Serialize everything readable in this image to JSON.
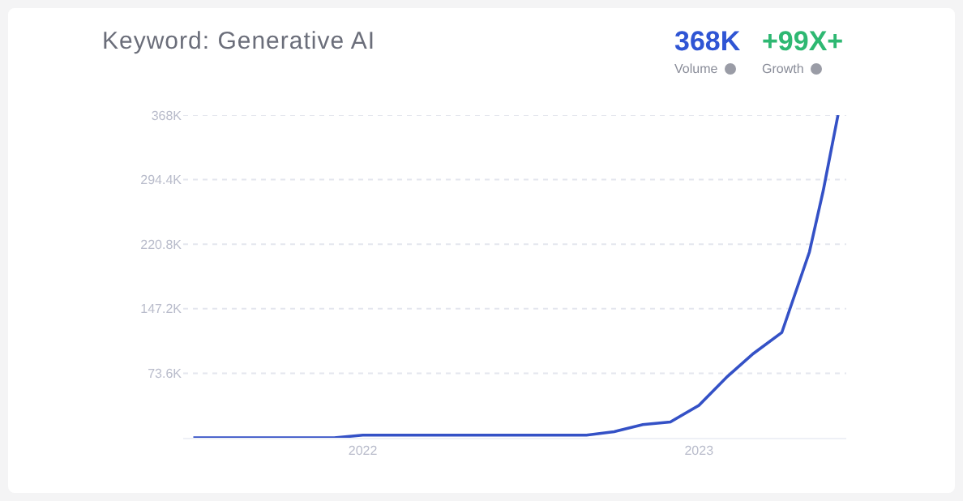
{
  "chart_data": {
    "type": "line",
    "title": "Keyword: Generative AI",
    "annotations": [
      "368K",
      "Volume",
      "+99X+",
      "Growth"
    ],
    "x": [
      "2021-07-01",
      "2021-12-01",
      "2022-01-01",
      "2022-09-01",
      "2022-10-01",
      "2022-11-01",
      "2022-12-01",
      "2023-01-01",
      "2023-02-01",
      "2023-03-01",
      "2023-04-01",
      "2023-05-01",
      "2023-05-16",
      "2023-06-01"
    ],
    "series": [
      {
        "color": "#3451c6",
        "values": [
          0,
          0,
          3000,
          3000,
          7000,
          15000,
          18000,
          37000,
          70000,
          96000,
          120000,
          212000,
          282000,
          368000
        ]
      }
    ],
    "xlim": [
      "2021-06-20",
      "2023-06-10"
    ],
    "xticks": [
      {
        "value": "2022-01-01",
        "label": "2022"
      },
      {
        "value": "2023-01-01",
        "label": "2023"
      }
    ],
    "ylim": [
      0,
      368000
    ],
    "yticks": [
      {
        "value": 73600,
        "label": "73.6K"
      },
      {
        "value": 147200,
        "label": "147.2K"
      },
      {
        "value": 220800,
        "label": "220.8K"
      },
      {
        "value": 294400,
        "label": "294.4K"
      },
      {
        "value": 368000,
        "label": "368K"
      }
    ],
    "grid": "y",
    "marker": "none",
    "line_style": "solid"
  }
}
